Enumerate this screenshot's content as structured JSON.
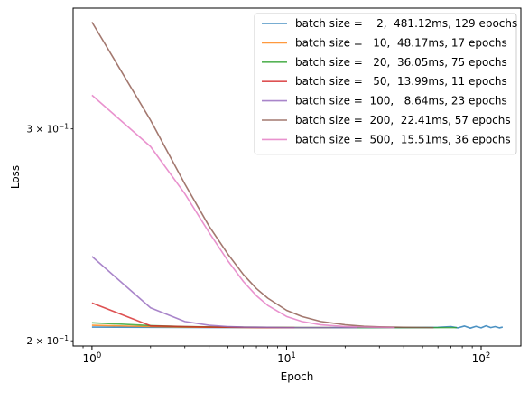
{
  "chart_data": {
    "type": "line",
    "xlabel": "Epoch",
    "ylabel": "Loss",
    "x_scale": "log",
    "y_scale": "log",
    "xlim": [
      0.8,
      160
    ],
    "ylim": [
      0.198,
      0.378
    ],
    "x_ticks": [
      {
        "value": 1,
        "base": "10",
        "exp": "0"
      },
      {
        "value": 10,
        "base": "10",
        "exp": "1"
      },
      {
        "value": 100,
        "base": "10",
        "exp": "2"
      }
    ],
    "y_ticks": [
      {
        "value": 0.2,
        "mantissa": "2 × 10",
        "exp": "−1"
      },
      {
        "value": 0.3,
        "mantissa": "3 × 10",
        "exp": "−1"
      }
    ],
    "grid": false,
    "legend_position": "top-right",
    "series": [
      {
        "name": "batch size =    2,  481.12ms, 129 epochs",
        "color": "#1f77b4",
        "x": [
          1,
          2,
          5,
          10,
          20,
          40,
          60,
          70,
          76,
          82,
          88,
          94,
          100,
          106,
          112,
          118,
          124,
          129
        ],
        "y": [
          0.2053,
          0.2052,
          0.2051,
          0.2051,
          0.2051,
          0.2051,
          0.2052,
          0.2055,
          0.205,
          0.2057,
          0.2049,
          0.2056,
          0.205,
          0.2058,
          0.2051,
          0.2055,
          0.205,
          0.2053
        ]
      },
      {
        "name": "batch size =   10,  48.17ms, 17 epochs",
        "color": "#ff7f0e",
        "x": [
          1,
          2,
          3,
          5,
          8,
          12,
          17
        ],
        "y": [
          0.206,
          0.2055,
          0.2053,
          0.2052,
          0.2051,
          0.2051,
          0.2051
        ]
      },
      {
        "name": "batch size =   20,  36.05ms, 75 epochs",
        "color": "#2ca02c",
        "x": [
          1,
          2,
          3,
          5,
          8,
          12,
          20,
          30,
          45,
          60,
          75
        ],
        "y": [
          0.207,
          0.2059,
          0.2055,
          0.2053,
          0.2052,
          0.2051,
          0.2051,
          0.2051,
          0.2051,
          0.2051,
          0.2051
        ]
      },
      {
        "name": "batch size =   50,  13.99ms, 11 epochs",
        "color": "#d62728",
        "x": [
          1,
          2,
          3,
          4,
          6,
          8,
          11
        ],
        "y": [
          0.215,
          0.2058,
          0.2055,
          0.2053,
          0.2052,
          0.2051,
          0.2051
        ]
      },
      {
        "name": "batch size =  100,   8.64ms, 23 epochs",
        "color": "#9467bd",
        "x": [
          1,
          2,
          3,
          4,
          5,
          6,
          8,
          10,
          15,
          23
        ],
        "y": [
          0.235,
          0.213,
          0.2075,
          0.206,
          0.2055,
          0.2053,
          0.2052,
          0.2051,
          0.2051,
          0.2051
        ]
      },
      {
        "name": "batch size =  200,  22.41ms, 57 epochs",
        "color": "#8c564b",
        "x": [
          1,
          2,
          3,
          4,
          5,
          6,
          7,
          8,
          10,
          12,
          15,
          20,
          25,
          30,
          40,
          57
        ],
        "y": [
          0.368,
          0.305,
          0.27,
          0.249,
          0.236,
          0.227,
          0.221,
          0.217,
          0.212,
          0.2095,
          0.2075,
          0.2062,
          0.2056,
          0.2054,
          0.2052,
          0.2051
        ]
      },
      {
        "name": "batch size =  500,  15.51ms, 36 epochs",
        "color": "#e377c2",
        "x": [
          1,
          2,
          3,
          4,
          5,
          6,
          7,
          8,
          10,
          12,
          15,
          20,
          25,
          30,
          36
        ],
        "y": [
          0.32,
          0.29,
          0.265,
          0.246,
          0.233,
          0.224,
          0.218,
          0.214,
          0.2095,
          0.2075,
          0.2062,
          0.2055,
          0.2053,
          0.2052,
          0.2051
        ]
      }
    ]
  }
}
